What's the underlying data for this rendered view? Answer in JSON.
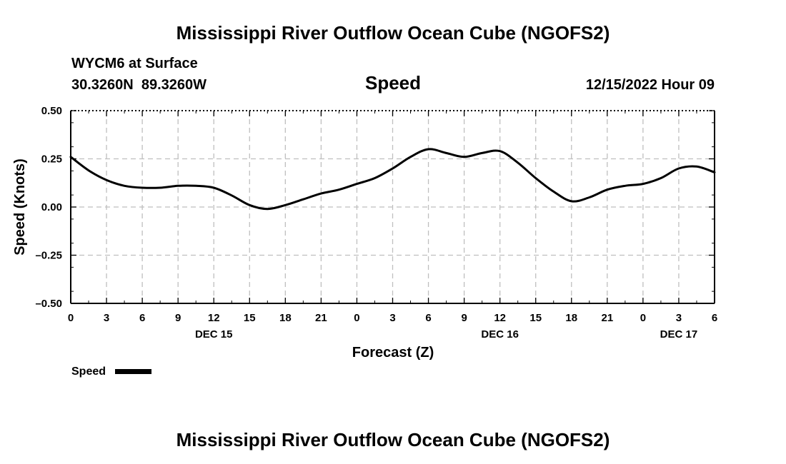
{
  "header": {
    "title": "Mississippi River Outflow Ocean Cube (NGOFS2)",
    "station": "WYCM6 at Surface",
    "coords": "30.3260N  89.3260W",
    "variable": "Speed",
    "datetime": "12/15/2022 Hour 09"
  },
  "footer": {
    "title": "Mississippi River Outflow Ocean Cube (NGOFS2)"
  },
  "colors": {
    "line": "#000000",
    "grid": "#bfbfbf",
    "background": "#ffffff"
  },
  "chart_data": {
    "type": "line",
    "title": "Speed",
    "xlabel": "Forecast (Z)",
    "ylabel": "Speed (Knots)",
    "xlim": [
      0,
      54
    ],
    "ylim": [
      -0.5,
      0.5
    ],
    "grid": true,
    "x_ticks": [
      0,
      3,
      6,
      9,
      12,
      15,
      18,
      21,
      24,
      27,
      30,
      33,
      36,
      39,
      42,
      45,
      48,
      51,
      54
    ],
    "x_tick_labels": [
      "0",
      "3",
      "6",
      "9",
      "12",
      "15",
      "18",
      "21",
      "0",
      "3",
      "6",
      "9",
      "12",
      "15",
      "18",
      "21",
      "0",
      "3",
      "6"
    ],
    "y_ticks": [
      -0.5,
      -0.25,
      0.0,
      0.25,
      0.5
    ],
    "y_tick_labels": [
      "–0.50",
      "–0.25",
      "0.00",
      "0.25",
      "0.50"
    ],
    "date_labels": [
      {
        "x": 12,
        "label": "DEC 15"
      },
      {
        "x": 36,
        "label": "DEC 16"
      },
      {
        "x": 51,
        "label": "DEC 17"
      }
    ],
    "legend": {
      "label": "Speed",
      "position": "bottom-left"
    },
    "series": [
      {
        "name": "Speed",
        "x": [
          0,
          1.5,
          3,
          4.5,
          6,
          7.5,
          9,
          10.5,
          12,
          13.5,
          15,
          16.5,
          18,
          19.5,
          21,
          22.5,
          24,
          25.5,
          27,
          28.5,
          30,
          31.5,
          33,
          34.5,
          36,
          37.5,
          39,
          40.5,
          42,
          43.5,
          45,
          46.5,
          48,
          49.5,
          51,
          52.5,
          54
        ],
        "values": [
          0.26,
          0.19,
          0.14,
          0.11,
          0.1,
          0.1,
          0.11,
          0.11,
          0.1,
          0.06,
          0.01,
          -0.01,
          0.01,
          0.04,
          0.07,
          0.09,
          0.12,
          0.15,
          0.2,
          0.26,
          0.3,
          0.28,
          0.26,
          0.28,
          0.29,
          0.23,
          0.15,
          0.08,
          0.03,
          0.05,
          0.09,
          0.11,
          0.12,
          0.15,
          0.2,
          0.21,
          0.18
        ]
      }
    ]
  }
}
